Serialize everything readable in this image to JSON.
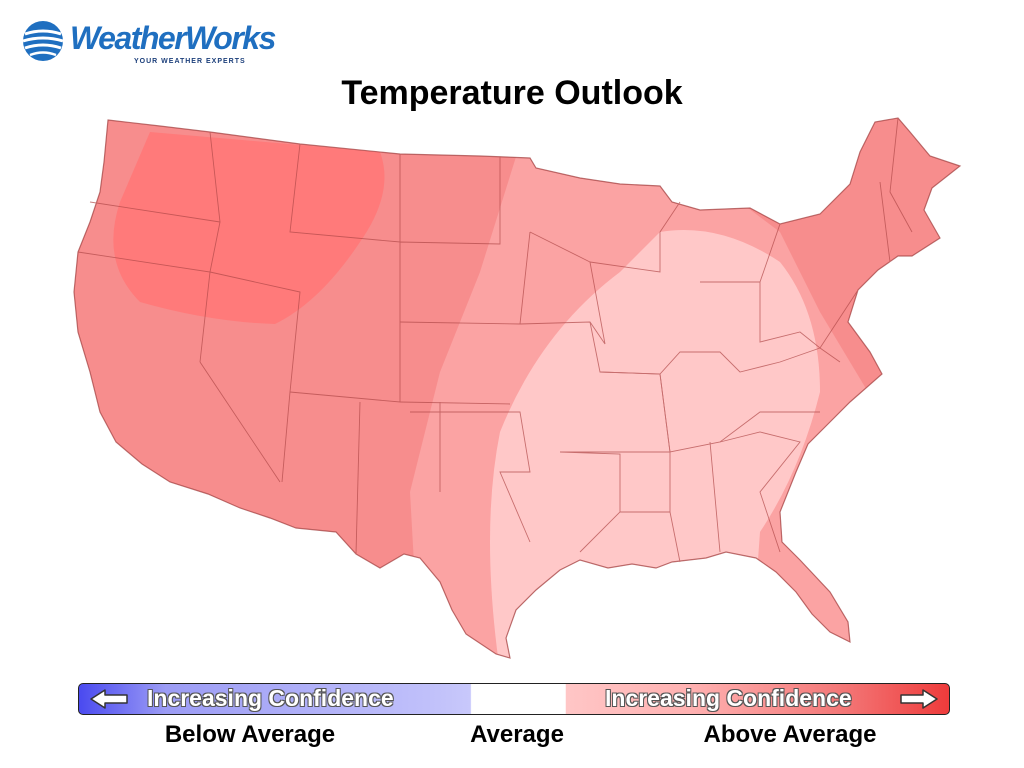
{
  "brand": {
    "name": "WeatherWorks",
    "tagline": "YOUR WEATHER EXPERTS",
    "color": "#1f6fc0"
  },
  "title": "Temperature Outlook",
  "map": {
    "region": "Contiguous United States",
    "zones": [
      {
        "id": "strong-above",
        "level": "Above Average - highest confidence",
        "area": "Northern Rockies / Pacific Northwest interior",
        "color": "#ff7a7a"
      },
      {
        "id": "above",
        "level": "Above Average",
        "area": "West, Plains, Northeast, Florida",
        "color": "#f78d8d"
      },
      {
        "id": "weak-above",
        "level": "Above Average - lower confidence",
        "area": "Upper Midwest, Central & Southern Plains, Mid-Atlantic, Southeast coast",
        "color": "#fba3a3"
      },
      {
        "id": "slight-above",
        "level": "Slightly Above Average",
        "area": "Mississippi Valley, Ohio Valley, Gulf Coast, Tennessee Valley",
        "color": "#ffc8c8"
      }
    ]
  },
  "legend": {
    "below_text": "Increasing Confidence",
    "above_text": "Increasing Confidence",
    "below_label": "Below Average",
    "average_label": "Average",
    "above_label": "Above Average",
    "colors": {
      "below_strong": "#4a4af0",
      "below_weak": "#c0c0fa",
      "average": "#ffffff",
      "above_weak": "#ffc6c6",
      "above_strong": "#ee3b3b"
    }
  }
}
